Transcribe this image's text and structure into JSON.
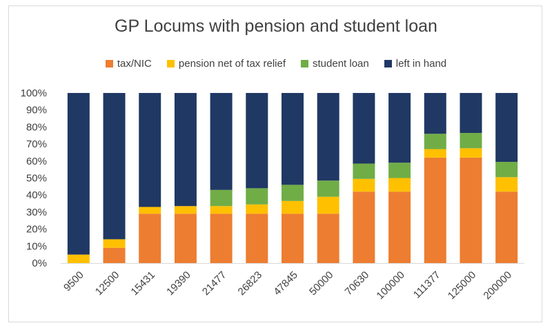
{
  "chart_data": {
    "type": "bar",
    "stacked": true,
    "percent": true,
    "title": "GP Locums with pension and student loan",
    "categories": [
      "9500",
      "12500",
      "15431",
      "19390",
      "21477",
      "26823",
      "47845",
      "50000",
      "70630",
      "100000",
      "111377",
      "125000",
      "200000"
    ],
    "series": [
      {
        "name": "tax/NIC",
        "color": "#ed7d31",
        "values": [
          0,
          9,
          29,
          29,
          29,
          29,
          29,
          29,
          42,
          42,
          62,
          62,
          42
        ]
      },
      {
        "name": "pension net of tax relief",
        "color": "#ffc000",
        "values": [
          5,
          5,
          4,
          4.5,
          4.5,
          5.5,
          7.5,
          10,
          7.5,
          8,
          5,
          5.5,
          8.5
        ]
      },
      {
        "name": "student loan",
        "color": "#70ad47",
        "values": [
          0,
          0,
          0,
          0,
          9.5,
          9.5,
          9.5,
          9.5,
          9,
          9,
          9,
          9,
          9
        ]
      },
      {
        "name": "left in hand",
        "color": "#203864",
        "values": [
          95,
          86,
          67,
          66.5,
          57,
          56,
          54,
          51.5,
          41.5,
          41,
          24,
          23.5,
          40.5
        ]
      }
    ],
    "ylim": [
      0,
      100
    ],
    "yticks": [
      "0%",
      "10%",
      "20%",
      "30%",
      "40%",
      "50%",
      "60%",
      "70%",
      "80%",
      "90%",
      "100%"
    ],
    "xlabel": "",
    "ylabel": "",
    "legend": "top",
    "grid": false
  }
}
